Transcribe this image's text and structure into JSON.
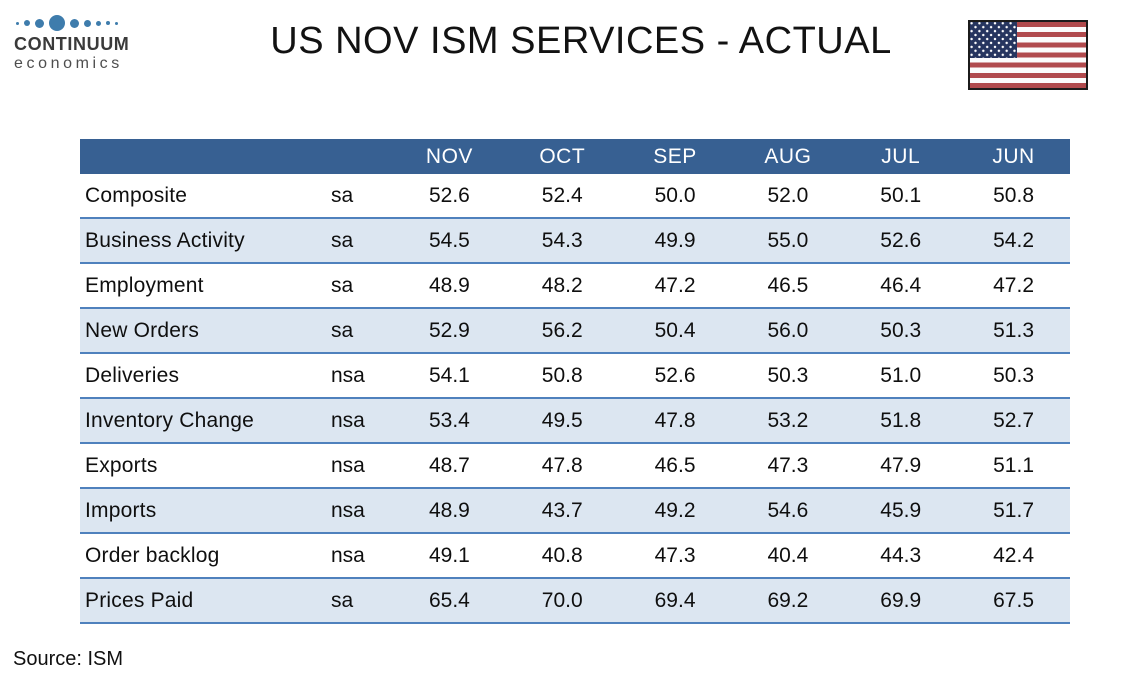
{
  "logo": {
    "line1": "CONTINUUM",
    "line2": "economics"
  },
  "title": "US NOV ISM SERVICES - ACTUAL",
  "footer": {
    "source": "Source: ISM"
  },
  "colors": {
    "header_bg": "#376092",
    "row_alt_bg": "#DCE6F1",
    "row_border": "#4F81BD",
    "flag_red": "#B04A4D",
    "flag_canton_blue": "#26355F",
    "logo_dot_blue": "#3E7CAC"
  },
  "chart_data": {
    "type": "table",
    "title": "US NOV ISM SERVICES - ACTUAL",
    "source": "Source: ISM",
    "columns": [
      "",
      "",
      "NOV",
      "OCT",
      "SEP",
      "AUG",
      "JUL",
      "JUN"
    ],
    "rows": [
      {
        "label": "Composite",
        "adj": "sa",
        "values": [
          "52.6",
          "52.4",
          "50.0",
          "52.0",
          "50.1",
          "50.8"
        ]
      },
      {
        "label": "Business Activity",
        "adj": "sa",
        "values": [
          "54.5",
          "54.3",
          "49.9",
          "55.0",
          "52.6",
          "54.2"
        ]
      },
      {
        "label": "Employment",
        "adj": "sa",
        "values": [
          "48.9",
          "48.2",
          "47.2",
          "46.5",
          "46.4",
          "47.2"
        ]
      },
      {
        "label": "New Orders",
        "adj": "sa",
        "values": [
          "52.9",
          "56.2",
          "50.4",
          "56.0",
          "50.3",
          "51.3"
        ]
      },
      {
        "label": "Deliveries",
        "adj": "nsa",
        "values": [
          "54.1",
          "50.8",
          "52.6",
          "50.3",
          "51.0",
          "50.3"
        ]
      },
      {
        "label": "Inventory Change",
        "adj": "nsa",
        "values": [
          "53.4",
          "49.5",
          "47.8",
          "53.2",
          "51.8",
          "52.7"
        ]
      },
      {
        "label": "Exports",
        "adj": "nsa",
        "values": [
          "48.7",
          "47.8",
          "46.5",
          "47.3",
          "47.9",
          "51.1"
        ]
      },
      {
        "label": "Imports",
        "adj": "nsa",
        "values": [
          "48.9",
          "43.7",
          "49.2",
          "54.6",
          "45.9",
          "51.7"
        ]
      },
      {
        "label": "Order backlog",
        "adj": "nsa",
        "values": [
          "49.1",
          "40.8",
          "47.3",
          "40.4",
          "44.3",
          "42.4"
        ]
      },
      {
        "label": "Prices Paid",
        "adj": "sa",
        "values": [
          "65.4",
          "70.0",
          "69.4",
          "69.2",
          "69.9",
          "67.5"
        ]
      }
    ]
  }
}
